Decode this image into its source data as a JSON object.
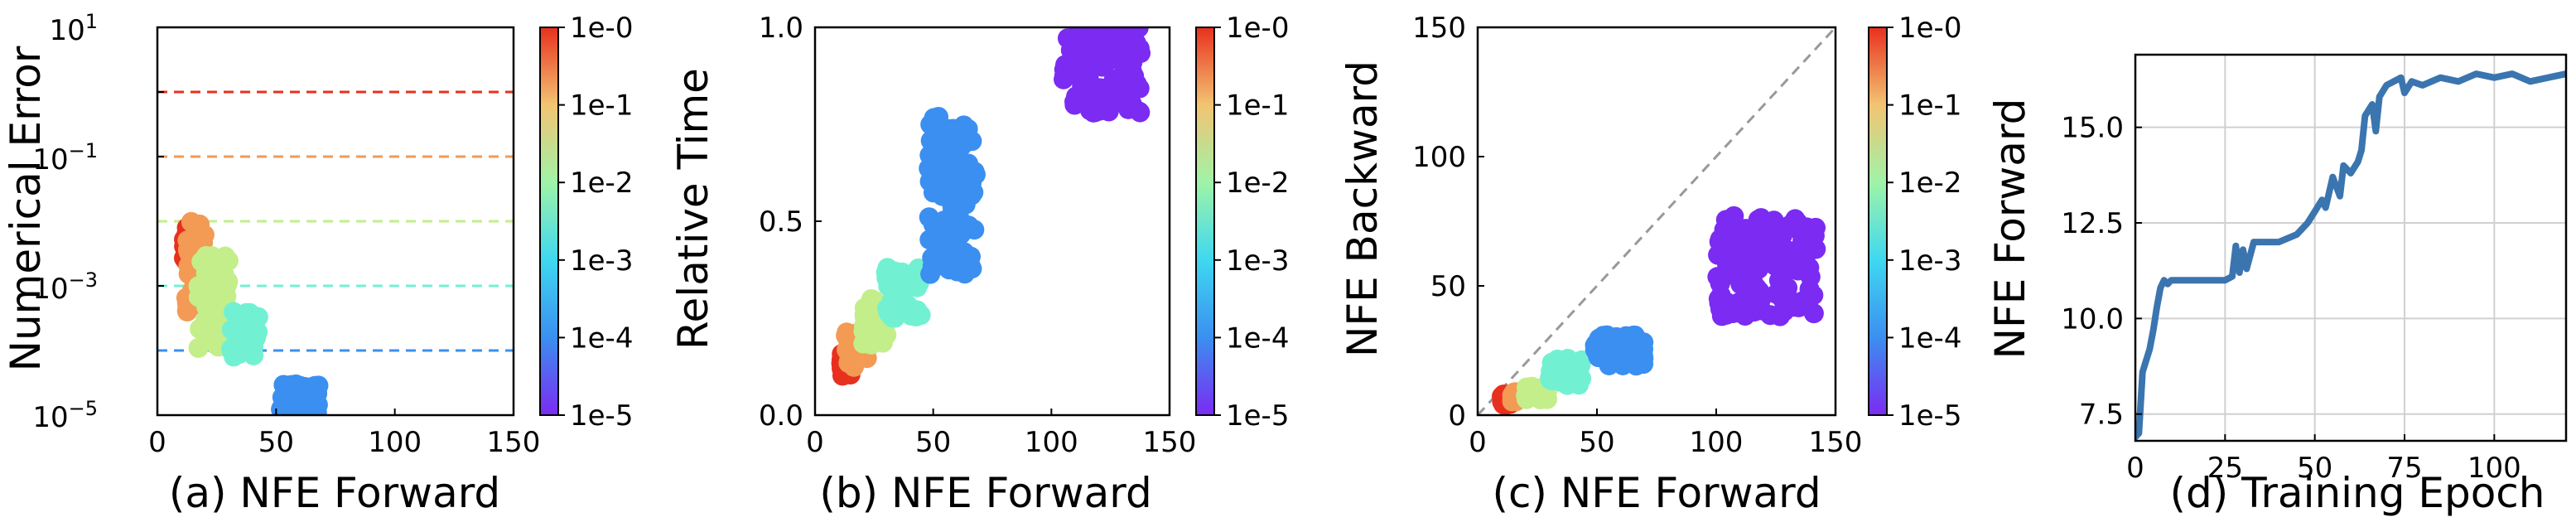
{
  "figure": {
    "colorbar_ticks": [
      "1e-0",
      "1e-1",
      "1e-2",
      "1e-3",
      "1e-4",
      "1e-5"
    ],
    "colorbar_colors": [
      "#e8301e",
      "#f39a55",
      "#c3ee8a",
      "#72f1d2",
      "#3b8ff0",
      "#7b2bf2"
    ],
    "panels": {
      "a": {
        "xlabel": "(a) NFE Forward",
        "ylabel": "Numerical Error",
        "xticks": [
          "0",
          "50",
          "100",
          "150"
        ]
      },
      "b": {
        "xlabel": "(b) NFE Forward",
        "ylabel": "Relative Time",
        "xticks": [
          "0",
          "50",
          "100",
          "150"
        ],
        "yticks": [
          "0.0",
          "0.5",
          "1.0"
        ]
      },
      "c": {
        "xlabel": "(c) NFE Forward",
        "ylabel": "NFE Backward",
        "xticks": [
          "0",
          "50",
          "100",
          "150"
        ],
        "yticks": [
          "0",
          "50",
          "100",
          "150"
        ]
      },
      "d": {
        "xlabel": "(d) Training Epoch",
        "ylabel": "NFE Forward",
        "xticks": [
          "0",
          "25",
          "50",
          "75",
          "100"
        ],
        "yticks": [
          "7.5",
          "10.0",
          "12.5",
          "15.0"
        ]
      }
    }
  },
  "chart_data": [
    {
      "type": "scatter",
      "xlabel": "(a) NFE Forward",
      "ylabel": "Numerical Error",
      "xlim": [
        0,
        150
      ],
      "ylim": [
        1e-05,
        10
      ],
      "yscale": "log",
      "colorbar": {
        "scale": "log",
        "range": [
          1e-05,
          1
        ]
      },
      "reference_lines": [
        {
          "y": 1,
          "tolerance": 1
        },
        {
          "y": 0.1,
          "tolerance": 0.1
        },
        {
          "y": 0.01,
          "tolerance": 0.01
        },
        {
          "y": 0.001,
          "tolerance": 0.001
        },
        {
          "y": 0.0001,
          "tolerance": 0.0001
        }
      ],
      "series": [
        {
          "tolerance": 1,
          "x_range": [
            11,
            16
          ],
          "y_range": [
            0.002,
            0.008
          ]
        },
        {
          "tolerance": 0.1,
          "x_range": [
            12,
            20
          ],
          "y_range": [
            0.0004,
            0.01
          ]
        },
        {
          "tolerance": 0.01,
          "x_range": [
            17,
            30
          ],
          "y_range": [
            0.0001,
            0.003
          ]
        },
        {
          "tolerance": 0.001,
          "x_range": [
            31,
            43
          ],
          "y_range": [
            8e-05,
            0.0004
          ]
        },
        {
          "tolerance": 0.0001,
          "x_range": [
            52,
            68
          ],
          "y_range": [
            1e-05,
            3e-05
          ]
        }
      ]
    },
    {
      "type": "scatter",
      "xlabel": "(b) NFE Forward",
      "ylabel": "Relative Time",
      "xlim": [
        0,
        150
      ],
      "ylim": [
        0,
        1
      ],
      "colorbar": {
        "scale": "log",
        "range": [
          1e-05,
          1
        ]
      },
      "series": [
        {
          "tolerance": 1,
          "x_range": [
            11,
            15
          ],
          "y_range": [
            0.1,
            0.16
          ]
        },
        {
          "tolerance": 0.1,
          "x_range": [
            13,
            22
          ],
          "y_range": [
            0.12,
            0.22
          ]
        },
        {
          "tolerance": 0.01,
          "x_range": [
            20,
            32
          ],
          "y_range": [
            0.18,
            0.3
          ]
        },
        {
          "tolerance": 0.001,
          "x_range": [
            30,
            45
          ],
          "y_range": [
            0.25,
            0.38
          ]
        },
        {
          "tolerance": 0.0001,
          "x_range": [
            48,
            68
          ],
          "y_range": [
            0.36,
            0.77
          ]
        },
        {
          "tolerance": 1e-05,
          "x_range": [
            105,
            138
          ],
          "y_range": [
            0.78,
            1.0
          ]
        }
      ]
    },
    {
      "type": "scatter",
      "xlabel": "(c) NFE Forward",
      "ylabel": "NFE Backward",
      "xlim": [
        0,
        150
      ],
      "ylim": [
        0,
        150
      ],
      "diagonal_reference": true,
      "colorbar": {
        "scale": "log",
        "range": [
          1e-05,
          1
        ]
      },
      "series": [
        {
          "tolerance": 1,
          "x_range": [
            10,
            15
          ],
          "y_range": [
            4,
            8
          ]
        },
        {
          "tolerance": 0.1,
          "x_range": [
            14,
            21
          ],
          "y_range": [
            5,
            9
          ]
        },
        {
          "tolerance": 0.01,
          "x_range": [
            20,
            30
          ],
          "y_range": [
            6,
            11
          ]
        },
        {
          "tolerance": 0.001,
          "x_range": [
            30,
            44
          ],
          "y_range": [
            11,
            22
          ]
        },
        {
          "tolerance": 0.0001,
          "x_range": [
            48,
            70
          ],
          "y_range": [
            19,
            31
          ]
        },
        {
          "tolerance": 1e-05,
          "x_range": [
            100,
            142
          ],
          "y_range": [
            38,
            77
          ]
        }
      ]
    },
    {
      "type": "line",
      "xlabel": "(d) Training Epoch",
      "ylabel": "NFE Forward",
      "xlim": [
        0,
        120
      ],
      "ylim": [
        6.8,
        16.9
      ],
      "series": [
        {
          "color": "#3b75af",
          "x": [
            0,
            1,
            2,
            3,
            4,
            5,
            6,
            7,
            8,
            9,
            10,
            11,
            13,
            15,
            18,
            22,
            25,
            27,
            28,
            29,
            30,
            31,
            33,
            35,
            40,
            45,
            48,
            50,
            52,
            53,
            55,
            57,
            58,
            60,
            62,
            63,
            64,
            66,
            67,
            68,
            70,
            72,
            74,
            75,
            77,
            80,
            85,
            90,
            95,
            100,
            105,
            110,
            115,
            120
          ],
          "y": [
            6.9,
            7.0,
            8.6,
            8.9,
            9.2,
            9.7,
            10.3,
            10.8,
            11.0,
            10.9,
            11.0,
            11.0,
            11.0,
            11.0,
            11.0,
            11.0,
            11.0,
            11.1,
            11.9,
            11.2,
            11.8,
            11.3,
            12.0,
            12.0,
            12.0,
            12.2,
            12.5,
            12.8,
            13.1,
            12.9,
            13.7,
            13.2,
            14.0,
            13.8,
            14.1,
            14.4,
            15.3,
            15.6,
            14.9,
            15.8,
            16.1,
            16.2,
            16.3,
            15.9,
            16.2,
            16.1,
            16.3,
            16.2,
            16.4,
            16.3,
            16.4,
            16.2,
            16.3,
            16.4
          ]
        }
      ]
    }
  ]
}
